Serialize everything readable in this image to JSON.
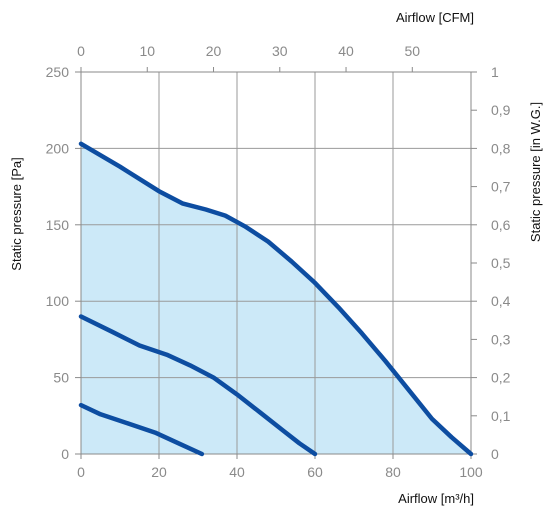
{
  "chart_data": {
    "type": "line",
    "title": "",
    "x_bottom": {
      "label": "Airflow [m³/h]",
      "range": [
        0,
        100
      ],
      "ticks": [
        "0",
        "20",
        "40",
        "60",
        "80",
        "100"
      ]
    },
    "x_top": {
      "label": "Airflow [CFM]",
      "range": [
        0,
        58.86
      ],
      "ticks": [
        "0",
        "10",
        "20",
        "30",
        "40",
        "50"
      ]
    },
    "y_left": {
      "label": "Static pressure [Pa]",
      "range": [
        0,
        250
      ],
      "ticks": [
        "0",
        "50",
        "100",
        "150",
        "200",
        "250"
      ]
    },
    "y_right": {
      "label": "Static pressure [in W.G.]",
      "range": [
        0,
        1
      ],
      "ticks": [
        "0",
        "0,1",
        "0,2",
        "0,3",
        "0,4",
        "0,5",
        "0,6",
        "0,7",
        "0,8",
        "0,9",
        "1"
      ]
    },
    "grid": true,
    "legend": "none",
    "series": [
      {
        "points": [
          [
            0,
            203
          ],
          [
            10,
            188
          ],
          [
            20,
            172
          ],
          [
            26,
            164
          ],
          [
            32,
            160
          ],
          [
            37,
            156
          ],
          [
            42,
            149
          ],
          [
            48,
            139
          ],
          [
            54,
            126
          ],
          [
            60,
            112
          ],
          [
            66,
            96
          ],
          [
            72,
            79
          ],
          [
            78,
            61
          ],
          [
            84,
            42
          ],
          [
            90,
            23
          ],
          [
            95,
            11
          ],
          [
            100,
            0
          ]
        ]
      },
      {
        "points": [
          [
            0,
            90
          ],
          [
            8,
            80
          ],
          [
            15,
            71
          ],
          [
            22,
            65
          ],
          [
            28,
            58
          ],
          [
            34,
            50
          ],
          [
            40,
            39
          ],
          [
            46,
            27
          ],
          [
            52,
            15
          ],
          [
            56,
            7
          ],
          [
            60,
            0
          ]
        ]
      },
      {
        "points": [
          [
            0,
            32
          ],
          [
            5,
            26
          ],
          [
            12,
            20
          ],
          [
            19,
            14
          ],
          [
            25,
            7
          ],
          [
            31,
            0
          ]
        ]
      }
    ],
    "fill_color": "#cce9f8",
    "line_color": "#0d4da1",
    "grid_color": "#9a9a9a",
    "tick_color": "#8a8a8a"
  }
}
